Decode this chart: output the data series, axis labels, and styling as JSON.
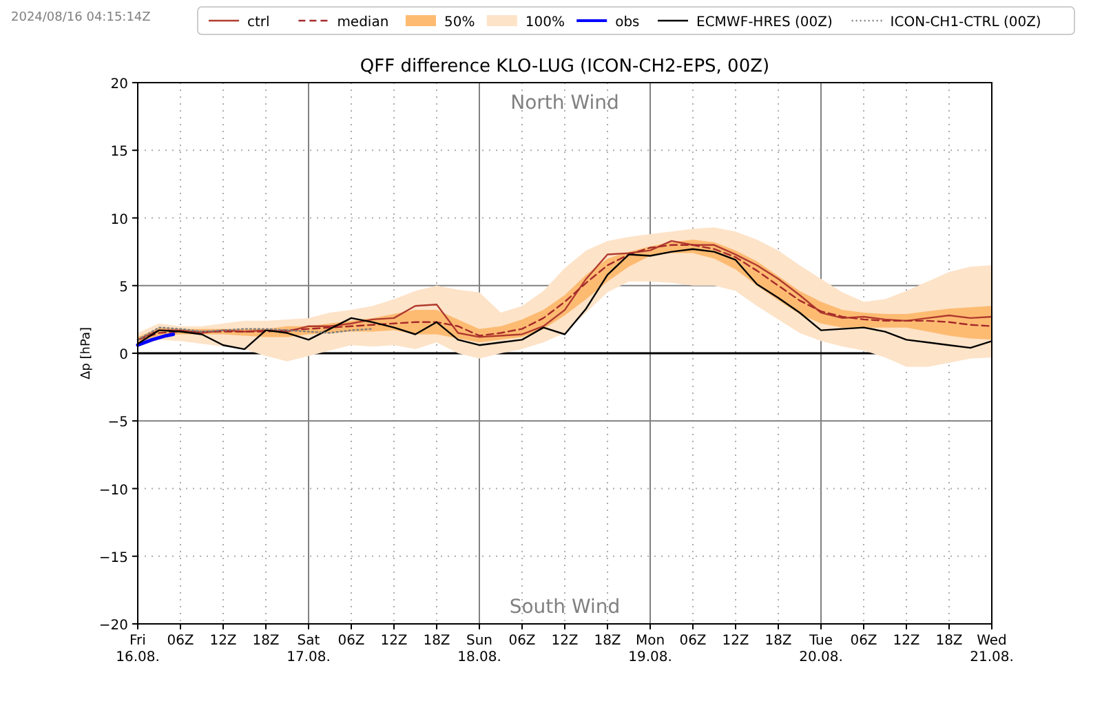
{
  "chart_data": {
    "type": "line",
    "title": "QFF difference KLO-LUG (ICON-CH2-EPS, 00Z)",
    "ylabel": "Δp [hPa]",
    "annotations": [
      "2024/08/16 04:15:14Z",
      "North Wind",
      "South Wind"
    ],
    "x": [
      "2024-08-16T00:00",
      "2024-08-16T03:00",
      "2024-08-16T06:00",
      "2024-08-16T09:00",
      "2024-08-16T12:00",
      "2024-08-16T15:00",
      "2024-08-16T18:00",
      "2024-08-16T21:00",
      "2024-08-17T00:00",
      "2024-08-17T03:00",
      "2024-08-17T06:00",
      "2024-08-17T09:00",
      "2024-08-17T12:00",
      "2024-08-17T15:00",
      "2024-08-17T18:00",
      "2024-08-17T21:00",
      "2024-08-18T00:00",
      "2024-08-18T03:00",
      "2024-08-18T06:00",
      "2024-08-18T09:00",
      "2024-08-18T12:00",
      "2024-08-18T15:00",
      "2024-08-18T18:00",
      "2024-08-18T21:00",
      "2024-08-19T00:00",
      "2024-08-19T03:00",
      "2024-08-19T06:00",
      "2024-08-19T09:00",
      "2024-08-19T12:00",
      "2024-08-19T15:00",
      "2024-08-19T18:00",
      "2024-08-19T21:00",
      "2024-08-20T00:00",
      "2024-08-20T03:00",
      "2024-08-20T06:00",
      "2024-08-20T09:00",
      "2024-08-20T12:00",
      "2024-08-20T15:00",
      "2024-08-20T18:00",
      "2024-08-20T21:00",
      "2024-08-21T00:00"
    ],
    "series": [
      {
        "name": "ctrl",
        "color": "#b03a2e",
        "line_style": "solid",
        "values": [
          1.0,
          1.7,
          1.7,
          1.5,
          1.7,
          1.6,
          1.7,
          1.6,
          2.0,
          2.0,
          2.2,
          2.5,
          2.6,
          3.5,
          3.6,
          1.5,
          1.2,
          1.3,
          1.4,
          2.0,
          3.2,
          5.5,
          7.3,
          7.4,
          7.6,
          8.3,
          8.0,
          8.0,
          7.3,
          6.5,
          5.5,
          4.3,
          3.0,
          2.6,
          2.7,
          2.5,
          2.4,
          2.6,
          2.8,
          2.6,
          2.7
        ]
      },
      {
        "name": "median",
        "color": "#a52a2a",
        "line_style": "dashed",
        "values": [
          1.0,
          1.5,
          1.6,
          1.6,
          1.6,
          1.6,
          1.6,
          1.7,
          1.8,
          1.9,
          2.0,
          2.1,
          2.2,
          2.3,
          2.3,
          2.0,
          1.3,
          1.5,
          1.8,
          2.6,
          3.8,
          5.2,
          6.5,
          7.3,
          7.8,
          8.0,
          8.0,
          7.7,
          7.1,
          6.1,
          5.0,
          3.9,
          3.1,
          2.7,
          2.5,
          2.4,
          2.4,
          2.4,
          2.3,
          2.1,
          2.0
        ]
      },
      {
        "name": "50%",
        "type": "area",
        "color": "#fdbb72",
        "values": [
          null,
          null,
          null,
          null,
          null,
          null,
          null,
          null,
          null,
          null,
          null,
          null,
          null,
          null,
          null,
          null,
          null,
          null,
          null,
          null,
          null,
          null,
          null,
          null,
          null,
          null,
          null,
          null,
          null,
          null,
          null,
          null,
          null,
          null,
          null,
          null,
          null,
          null,
          null,
          null,
          null
        ],
        "upper": [
          1.2,
          1.9,
          1.8,
          1.8,
          1.8,
          1.8,
          1.8,
          2.0,
          2.0,
          2.2,
          2.4,
          2.6,
          2.9,
          3.2,
          3.2,
          2.5,
          1.8,
          2.0,
          2.5,
          3.2,
          4.3,
          5.8,
          7.0,
          7.5,
          7.9,
          8.2,
          8.4,
          8.2,
          7.6,
          6.8,
          5.7,
          4.6,
          3.8,
          3.2,
          3.0,
          2.9,
          2.9,
          3.1,
          3.3,
          3.4,
          3.5
        ],
        "lower": [
          0.8,
          1.3,
          1.4,
          1.4,
          1.4,
          1.3,
          1.2,
          1.2,
          1.4,
          1.5,
          1.6,
          1.6,
          1.7,
          1.4,
          1.4,
          1.1,
          0.8,
          1.0,
          1.2,
          1.8,
          2.8,
          4.0,
          5.3,
          6.4,
          7.2,
          7.4,
          7.4,
          7.0,
          6.2,
          5.0,
          3.9,
          2.9,
          2.2,
          1.9,
          1.9,
          1.9,
          1.9,
          1.6,
          1.3,
          1.1,
          1.0
        ]
      },
      {
        "name": "100%",
        "type": "area",
        "color": "#fde3c8",
        "values": [
          null,
          null,
          null,
          null,
          null,
          null,
          null,
          null,
          null,
          null,
          null,
          null,
          null,
          null,
          null,
          null,
          null,
          null,
          null,
          null,
          null,
          null,
          null,
          null,
          null,
          null,
          null,
          null,
          null,
          null,
          null,
          null,
          null,
          null,
          null,
          null,
          null,
          null,
          null,
          null,
          null
        ],
        "upper": [
          1.5,
          2.2,
          2.0,
          2.0,
          2.2,
          2.4,
          2.4,
          2.5,
          2.6,
          3.0,
          3.2,
          3.5,
          4.0,
          4.6,
          5.0,
          4.7,
          4.5,
          3.0,
          3.5,
          4.6,
          6.3,
          7.6,
          8.3,
          8.6,
          8.8,
          9.0,
          9.2,
          9.3,
          9.0,
          8.4,
          7.6,
          6.5,
          5.5,
          4.5,
          3.8,
          4.0,
          4.6,
          5.3,
          6.0,
          6.4,
          6.5
        ],
        "lower": [
          0.5,
          1.0,
          0.9,
          0.7,
          0.5,
          0.3,
          -0.2,
          -0.6,
          -0.2,
          0.2,
          0.6,
          0.5,
          0.6,
          0.3,
          0.8,
          0.0,
          -0.4,
          0.0,
          0.3,
          0.8,
          1.5,
          3.0,
          4.5,
          5.3,
          5.3,
          5.2,
          5.0,
          5.0,
          4.6,
          3.5,
          2.5,
          1.5,
          0.9,
          0.5,
          0.2,
          -0.3,
          -1.0,
          -1.0,
          -0.7,
          -0.4,
          -0.3
        ]
      },
      {
        "name": "obs",
        "color": "#0000ff",
        "line_style": "solid",
        "x": [
          "2024-08-16T00:00",
          "2024-08-16T02:00",
          "2024-08-16T04:00",
          "2024-08-16T05:00"
        ],
        "values": [
          0.6,
          1.0,
          1.3,
          1.4
        ]
      },
      {
        "name": "ECMWF-HRES (00Z)",
        "color": "#000000",
        "line_style": "solid",
        "values": [
          0.7,
          1.7,
          1.6,
          1.4,
          0.6,
          0.3,
          1.7,
          1.5,
          1.0,
          1.8,
          2.6,
          2.3,
          1.9,
          1.4,
          2.3,
          1.0,
          0.6,
          0.8,
          1.0,
          1.9,
          1.4,
          3.3,
          5.8,
          7.3,
          7.2,
          7.5,
          7.7,
          7.5,
          6.9,
          5.1,
          4.1,
          3.0,
          1.7,
          1.8,
          1.9,
          1.6,
          1.0,
          0.8,
          0.6,
          0.4,
          0.9
        ]
      },
      {
        "name": "ICON-CH1-CTRL (00Z)",
        "color": "#808080",
        "line_style": "dotted",
        "x": [
          "2024-08-16T00:00",
          "2024-08-16T03:00",
          "2024-08-16T06:00",
          "2024-08-16T09:00",
          "2024-08-16T12:00",
          "2024-08-16T15:00",
          "2024-08-16T18:00",
          "2024-08-16T21:00",
          "2024-08-17T00:00",
          "2024-08-17T03:00",
          "2024-08-17T06:00",
          "2024-08-17T09:00"
        ],
        "values": [
          1.0,
          1.9,
          1.8,
          1.6,
          1.7,
          1.8,
          1.8,
          1.7,
          1.6,
          1.5,
          1.7,
          1.8
        ]
      }
    ],
    "xlim": [
      "2024-08-16T00:00",
      "2024-08-21T00:00"
    ],
    "xticks": [
      {
        "value": "2024-08-16T00:00",
        "label": "Fri\n16.08."
      },
      {
        "value": "2024-08-16T06:00",
        "label": "06Z"
      },
      {
        "value": "2024-08-16T12:00",
        "label": "12Z"
      },
      {
        "value": "2024-08-16T18:00",
        "label": "18Z"
      },
      {
        "value": "2024-08-17T00:00",
        "label": "Sat\n17.08."
      },
      {
        "value": "2024-08-17T06:00",
        "label": "06Z"
      },
      {
        "value": "2024-08-17T12:00",
        "label": "12Z"
      },
      {
        "value": "2024-08-17T18:00",
        "label": "18Z"
      },
      {
        "value": "2024-08-18T00:00",
        "label": "Sun\n18.08."
      },
      {
        "value": "2024-08-18T06:00",
        "label": "06Z"
      },
      {
        "value": "2024-08-18T12:00",
        "label": "12Z"
      },
      {
        "value": "2024-08-18T18:00",
        "label": "18Z"
      },
      {
        "value": "2024-08-19T00:00",
        "label": "Mon\n19.08."
      },
      {
        "value": "2024-08-19T06:00",
        "label": "06Z"
      },
      {
        "value": "2024-08-19T12:00",
        "label": "12Z"
      },
      {
        "value": "2024-08-19T18:00",
        "label": "18Z"
      },
      {
        "value": "2024-08-20T00:00",
        "label": "Tue\n20.08."
      },
      {
        "value": "2024-08-20T06:00",
        "label": "06Z"
      },
      {
        "value": "2024-08-20T12:00",
        "label": "12Z"
      },
      {
        "value": "2024-08-20T18:00",
        "label": "18Z"
      },
      {
        "value": "2024-08-21T00:00",
        "label": "Wed\n21.08."
      }
    ],
    "ylim": [
      -20,
      20
    ],
    "yticks": [
      -20,
      -15,
      -10,
      -5,
      0,
      5,
      10,
      15,
      20
    ],
    "grid": true,
    "legend": "top"
  }
}
